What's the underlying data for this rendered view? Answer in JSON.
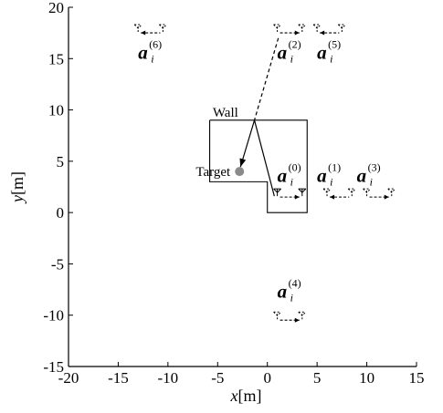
{
  "chart_data": {
    "type": "scatter",
    "xlabel_var": "x",
    "xlabel_unit": "[m]",
    "ylabel_var": "y",
    "ylabel_unit": "[m]",
    "xlim": [
      -20,
      15
    ],
    "ylim": [
      -15,
      20
    ],
    "xticks": [
      -20,
      -15,
      -10,
      -5,
      0,
      5,
      10,
      15
    ],
    "yticks": [
      -15,
      -10,
      -5,
      0,
      5,
      10,
      15,
      20
    ],
    "grid": false,
    "target": {
      "label": "Target",
      "x": -2.8,
      "y": 4.0,
      "color": "#8a8a8a"
    },
    "wall": {
      "label": "Wall",
      "outline": [
        [
          -5.8,
          9.0
        ],
        [
          4.0,
          9.0
        ],
        [
          4.0,
          0.0
        ],
        [
          0.0,
          0.0
        ],
        [
          0.0,
          3.0
        ],
        [
          -5.8,
          3.0
        ],
        [
          -5.8,
          9.0
        ]
      ]
    },
    "reflection_point": [
      -1.3,
      9.0
    ],
    "arrays": [
      {
        "index": "0",
        "symbol": "a",
        "subscript": "i",
        "superscript": "(0)",
        "x": 1.0,
        "y": 1.6,
        "arrow": "right",
        "label_x": 1.0,
        "label_y": 3.0
      },
      {
        "index": "1",
        "symbol": "a",
        "subscript": "i",
        "superscript": "(1)",
        "x": 6.0,
        "y": 1.6,
        "arrow": "left",
        "label_x": 5.0,
        "label_y": 3.0
      },
      {
        "index": "2",
        "symbol": "a",
        "subscript": "i",
        "superscript": "(2)",
        "x": 1.0,
        "y": 17.6,
        "arrow": "right",
        "label_x": 1.0,
        "label_y": 15.0
      },
      {
        "index": "3",
        "symbol": "a",
        "subscript": "i",
        "superscript": "(3)",
        "x": 10.0,
        "y": 1.6,
        "arrow": "right",
        "label_x": 9.0,
        "label_y": 3.0
      },
      {
        "index": "4",
        "symbol": "a",
        "subscript": "i",
        "superscript": "(4)",
        "x": 1.0,
        "y": -10.4,
        "arrow": "right",
        "label_x": 1.0,
        "label_y": -8.3
      },
      {
        "index": "5",
        "symbol": "a",
        "subscript": "i",
        "superscript": "(5)",
        "x": 5.0,
        "y": 17.6,
        "arrow": "left",
        "label_x": 5.0,
        "label_y": 15.0
      },
      {
        "index": "6",
        "symbol": "a",
        "subscript": "i",
        "superscript": "(6)",
        "x": -13.0,
        "y": 17.6,
        "arrow": "left",
        "label_x": -13.0,
        "label_y": 15.0
      }
    ]
  }
}
